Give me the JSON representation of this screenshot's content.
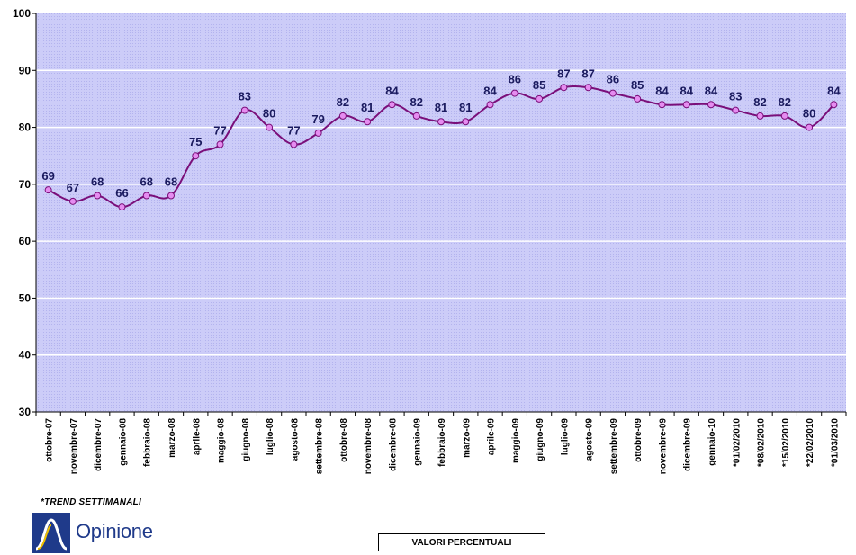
{
  "chart_data": {
    "type": "line",
    "x": [
      "ottobre-07",
      "novembre-07",
      "dicembre-07",
      "gennaio-08",
      "febbraio-08",
      "marzo-08",
      "aprile-08",
      "maggio-08",
      "giugno-08",
      "luglio-08",
      "agosto-08",
      "settembre-08",
      "ottobre-08",
      "novembre-08",
      "dicembre-08",
      "gennaio-09",
      "febbraio-09",
      "marzo-09",
      "aprile-09",
      "maggio-09",
      "giugno-09",
      "luglio-09",
      "agosto-09",
      "settembre-09",
      "ottobre-09",
      "novembre-09",
      "dicembre-09",
      "gennaio-10",
      "*01/02/2010",
      "*08/02/2010",
      "*15/02/2010",
      "*22/02/2010",
      "*01/03/2010"
    ],
    "series": [
      {
        "values": [
          69,
          67,
          68,
          66,
          68,
          68,
          75,
          77,
          83,
          80,
          77,
          79,
          82,
          81,
          84,
          82,
          81,
          81,
          84,
          86,
          85,
          87,
          87,
          86,
          85,
          84,
          84,
          84,
          83,
          82,
          82,
          80,
          84
        ]
      }
    ],
    "ylim": [
      30,
      100
    ],
    "yticks": [
      30,
      40,
      50,
      60,
      70,
      80,
      90,
      100
    ],
    "grid": true,
    "xlabel": "",
    "ylabel": "",
    "legend_text": "VALORI PERCENTUALI",
    "note": "*TREND SETTIMANALI",
    "colors": {
      "line": "#7a0f7a",
      "marker_fill": "#e58cf0",
      "marker_stroke": "#7a0f7a",
      "plot_bg": "#c9c9f7",
      "gridline": "#ffffff",
      "data_label": "#1a1a5e"
    }
  },
  "logo": {
    "text": "Opinione",
    "mark": "opinione-logo-mark"
  }
}
